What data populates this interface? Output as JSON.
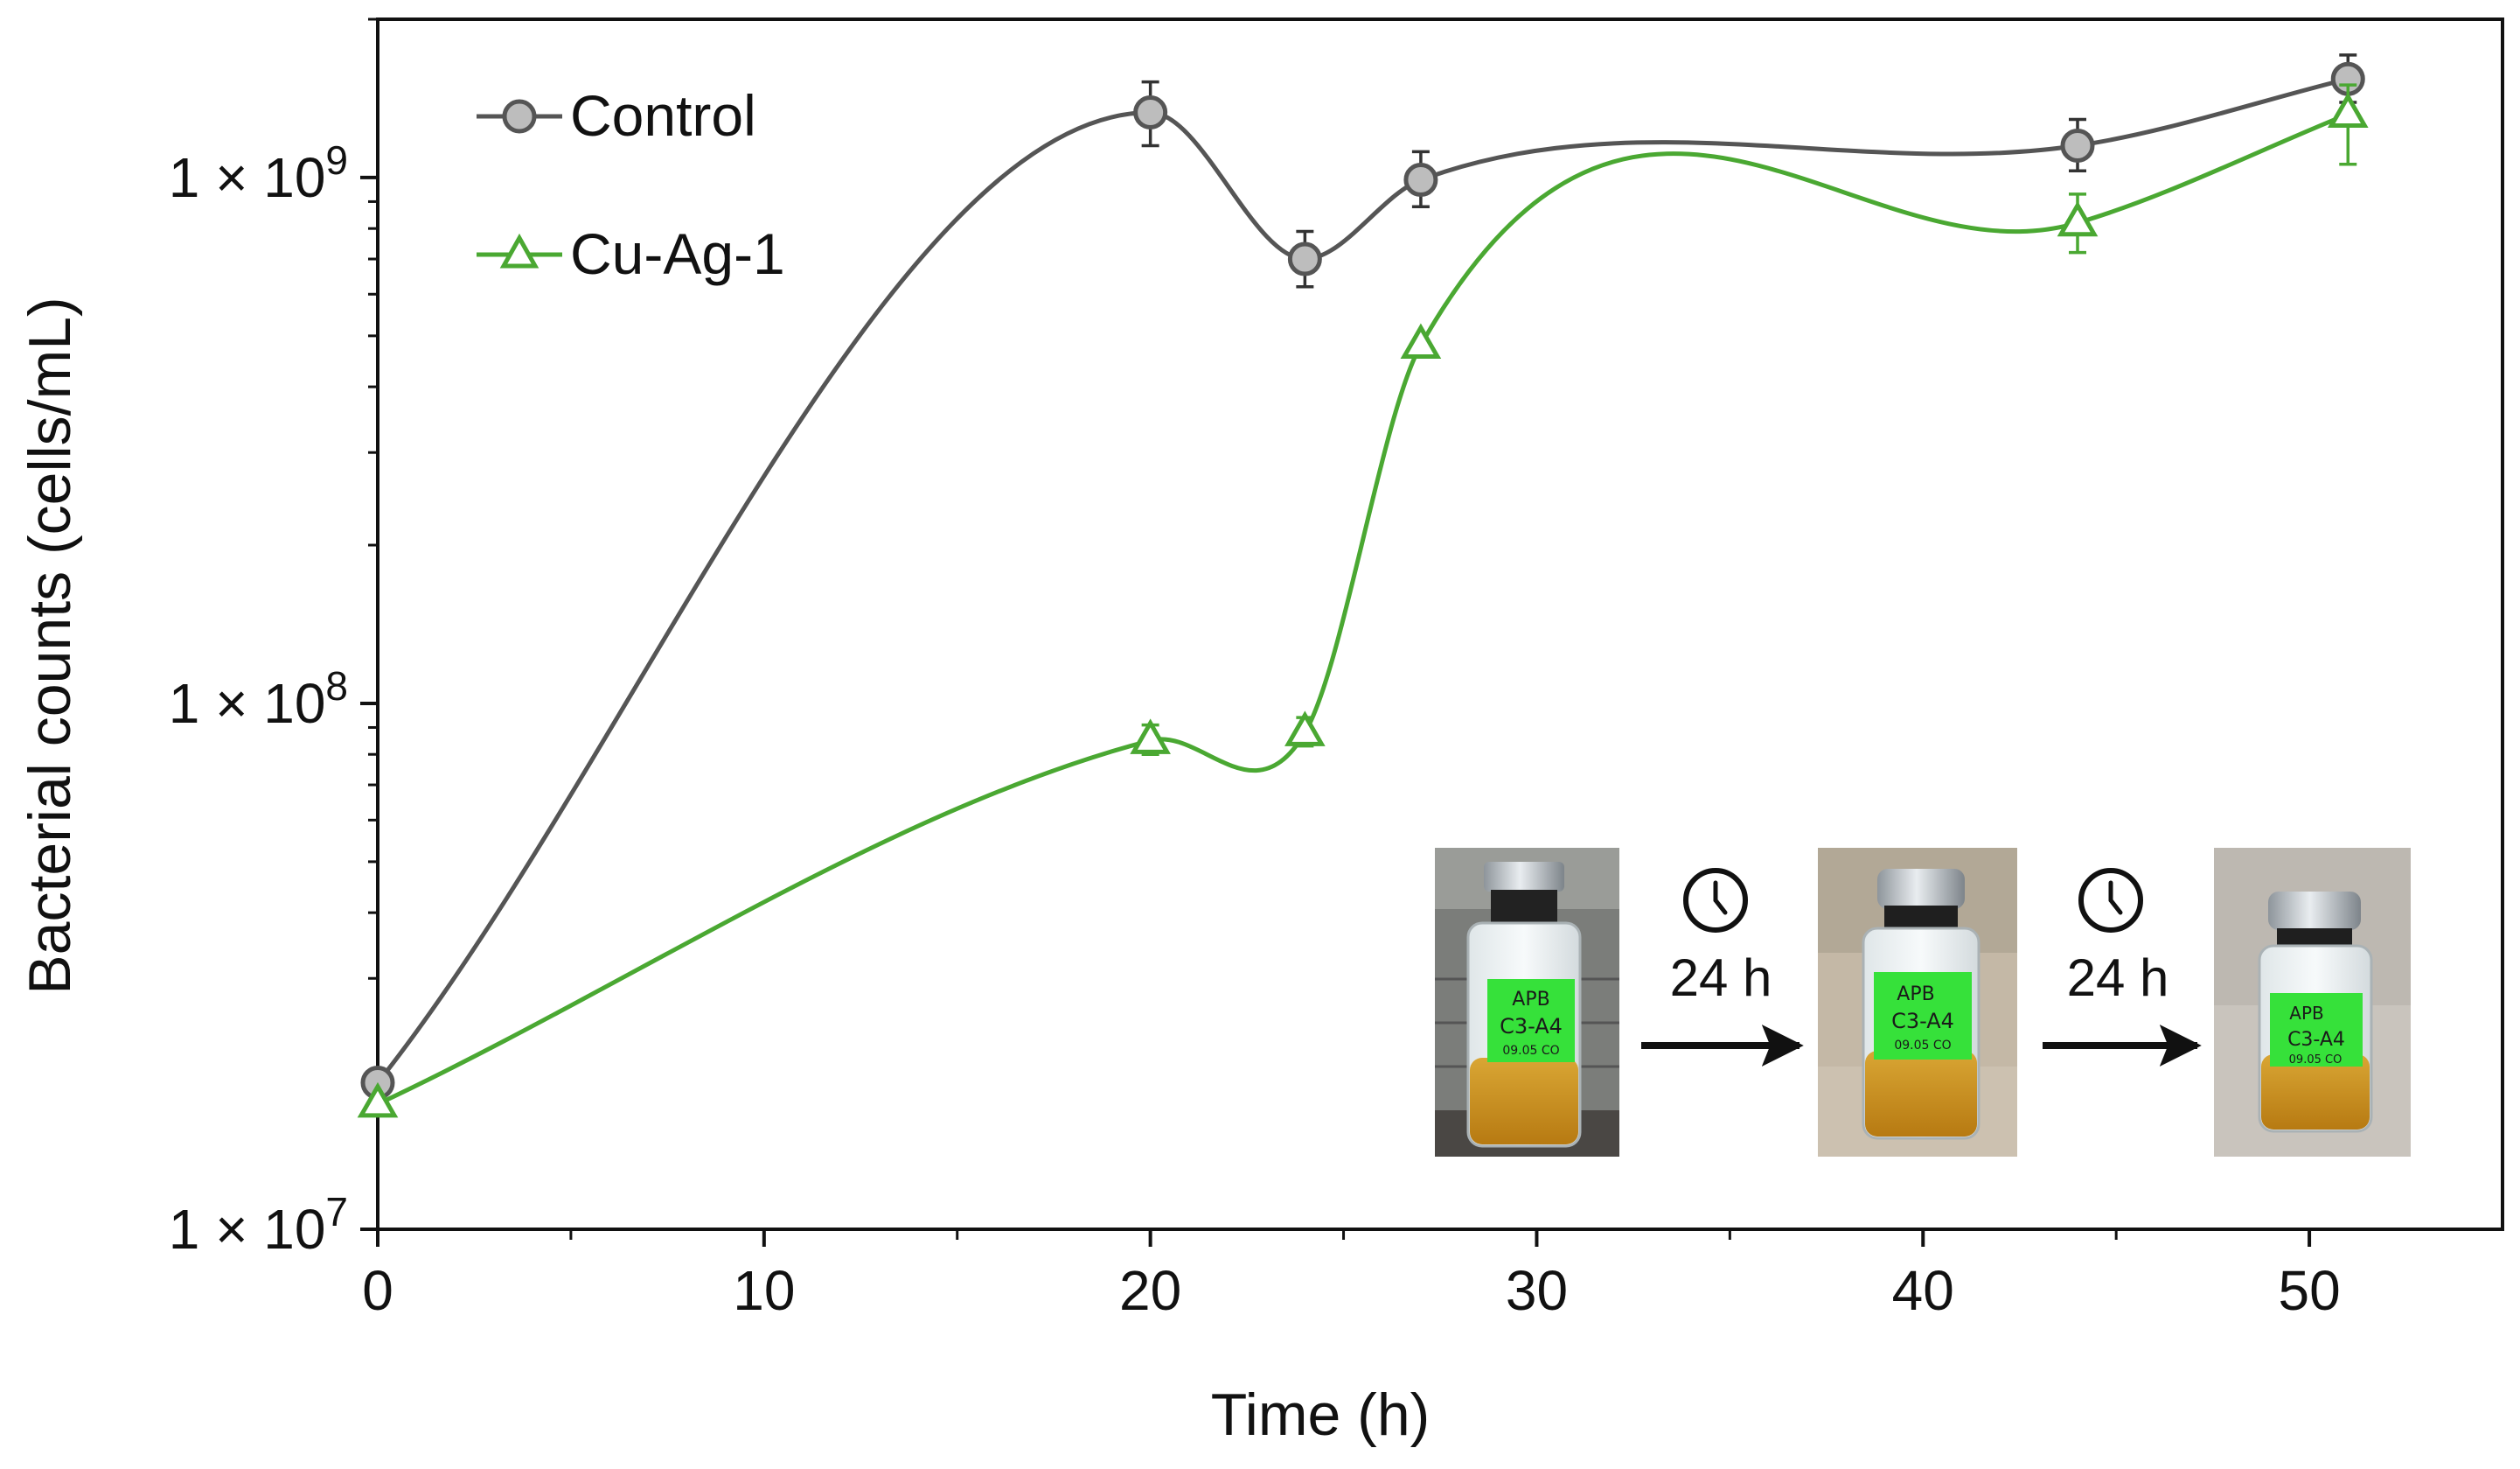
{
  "chart_data": {
    "type": "line",
    "title": "",
    "xlabel": "Time (h)",
    "ylabel": "Bacterial counts (cells/mL)",
    "xlim": [
      0,
      55
    ],
    "ylim": [
      10000000,
      2000000000
    ],
    "yscale": "log",
    "xticks": [
      0,
      10,
      20,
      30,
      40,
      50
    ],
    "xtick_labels": [
      "0",
      "10",
      "20",
      "30",
      "40",
      "50"
    ],
    "yticks": [
      {
        "value": 10000000,
        "base": "1 × 10",
        "exp": "7"
      },
      {
        "value": 100000000,
        "base": "1 × 10",
        "exp": "8"
      },
      {
        "value": 1000000000,
        "base": "1 × 10",
        "exp": "9"
      }
    ],
    "legend_position": "top-left",
    "series": [
      {
        "name": "Control",
        "color": "#555555",
        "marker": "circle",
        "marker_fill": "#bdbdbd",
        "x": [
          0,
          20,
          24,
          27,
          44,
          51
        ],
        "values": [
          19000000,
          1330000000,
          700000000,
          990000000,
          1150000000,
          1540000000
        ],
        "error_low": [
          0,
          1150000000,
          620000000,
          880000000,
          1030000000,
          1390000000
        ],
        "error_high": [
          0,
          1520000000,
          790000000,
          1120000000,
          1290000000,
          1710000000
        ]
      },
      {
        "name": "Cu-Ag-1",
        "color": "#4aa832",
        "marker": "triangle",
        "marker_fill": "#ffffff",
        "x": [
          0,
          20,
          24,
          27,
          44,
          51
        ],
        "values": [
          17300000,
          85000000,
          88000000,
          480000000,
          820000000,
          1320000000
        ],
        "error_low": [
          0,
          80000000,
          83000000,
          0,
          720000000,
          1060000000
        ],
        "error_high": [
          0,
          91000000,
          94000000,
          0,
          930000000,
          1500000000
        ]
      }
    ],
    "inset": {
      "step_label_1": "24 h",
      "step_label_2": "24 h",
      "vial_label_line_1": "APB",
      "vial_label_line_2": "C3-A4",
      "vial_label_line_3": "09.05 CO"
    }
  }
}
